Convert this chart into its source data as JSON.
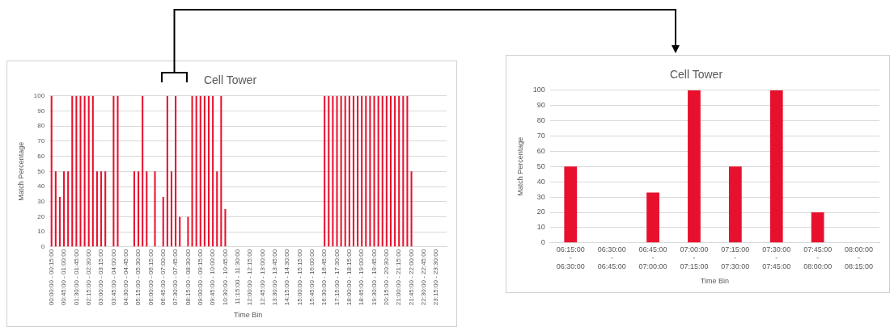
{
  "chart_data": [
    {
      "type": "bar",
      "title": "Cell Tower",
      "xlabel": "Time Bin",
      "ylabel": "Match Percentage",
      "color": "#e8112d",
      "ylim": [
        0,
        100
      ],
      "yticks": [
        0,
        10,
        20,
        30,
        40,
        50,
        60,
        70,
        80,
        90,
        100
      ],
      "grid": "y",
      "categories": [
        "00:00:00 - 00:15:00",
        null,
        null,
        "00:45:00 - 01:00:00",
        null,
        null,
        "01:30:00 - 01:45:00",
        null,
        null,
        "02:15:00 - 02:30:00",
        null,
        null,
        "03:00:00 - 03:15:00",
        null,
        null,
        "03:45:00 - 04:00:00",
        null,
        null,
        "04:30:00 - 04:45:00",
        null,
        null,
        "05:15:00 - 05:30:00",
        null,
        null,
        "06:00:00 - 06:15:00",
        null,
        null,
        "06:45:00 - 07:00:00",
        null,
        null,
        "07:30:00 - 07:45:00",
        null,
        null,
        "08:15:00 - 08:30:00",
        null,
        null,
        "09:00:00 - 09:15:00",
        null,
        null,
        "09:45:00 - 10:00:00",
        null,
        null,
        "10:30:00 - 10:45:00",
        null,
        null,
        "11:15:00 - 11:30:00",
        null,
        null,
        "12:00:00 - 12:15:00",
        null,
        null,
        "12:45:00 - 13:00:00",
        null,
        null,
        "13:30:00 - 13:45:00",
        null,
        null,
        "14:15:00 - 14:30:00",
        null,
        null,
        "15:00:00 - 15:15:00",
        null,
        null,
        "15:45:00 - 16:00:00",
        null,
        null,
        "16:30:00 - 16:45:00",
        null,
        null,
        "17:15:00 - 17:30:00",
        null,
        null,
        "18:00:00 - 18:15:00",
        null,
        null,
        "18:45:00 - 19:00:00",
        null,
        null,
        "19:30:00 - 19:45:00",
        null,
        null,
        "20:15:00 - 20:30:00",
        null,
        null,
        "21:00:00 - 21:15:00",
        null,
        null,
        "21:45:00 - 22:00:00",
        null,
        null,
        "22:30:00 - 22:45:00",
        null,
        null,
        "23:15:00 - 23:30:00",
        null,
        null
      ],
      "values": [
        100,
        50,
        33,
        50,
        50,
        100,
        100,
        100,
        100,
        100,
        100,
        50,
        50,
        50,
        0,
        100,
        100,
        0,
        0,
        0,
        50,
        50,
        100,
        50,
        0,
        50,
        0,
        33,
        100,
        50,
        100,
        20,
        0,
        20,
        100,
        100,
        100,
        100,
        100,
        100,
        50,
        100,
        25,
        0,
        0,
        0,
        0,
        0,
        0,
        0,
        0,
        0,
        0,
        0,
        0,
        0,
        0,
        0,
        0,
        0,
        0,
        0,
        0,
        0,
        0,
        0,
        100,
        100,
        100,
        100,
        100,
        100,
        100,
        100,
        100,
        100,
        100,
        100,
        100,
        100,
        100,
        100,
        100,
        100,
        100,
        100,
        100,
        50,
        0,
        0,
        0,
        0,
        0,
        0,
        0,
        0
      ]
    },
    {
      "type": "bar",
      "title": "Cell Tower",
      "xlabel": "Time Bin",
      "ylabel": "Match Percentage",
      "color": "#e8112d",
      "ylim": [
        0,
        100
      ],
      "yticks": [
        0,
        10,
        20,
        30,
        40,
        50,
        60,
        70,
        80,
        90,
        100
      ],
      "grid": "y",
      "categories": [
        "06:15:00 - 06:30:00",
        "06:30:00 - 06:45:00",
        "06:45:00 - 07:00:00",
        "07:00:00 - 07:15:00",
        "07:15:00 - 07:30:00",
        "07:30:00 - 07:45:00",
        "07:45:00 - 08:00:00",
        "08:00:00 - 08:15:00"
      ],
      "values": [
        50,
        0,
        33,
        100,
        50,
        100,
        20,
        0
      ]
    }
  ]
}
